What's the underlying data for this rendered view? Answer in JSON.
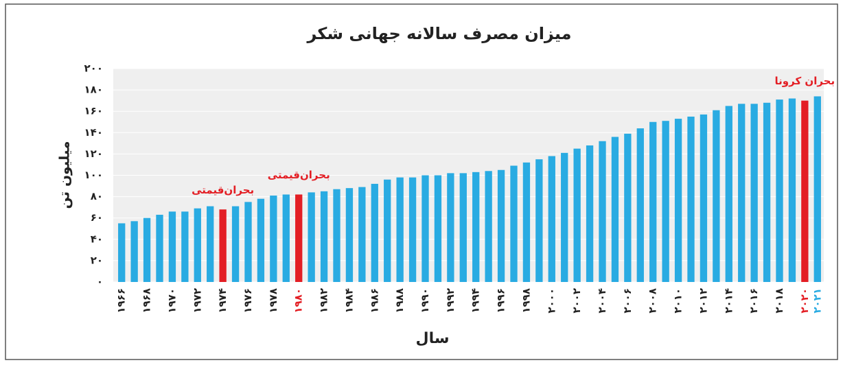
{
  "chart_data": {
    "type": "bar",
    "title": "میزان مصرف سالانه جهانی شکر",
    "ylabel": "میلیون تن",
    "xlabel": "سال",
    "categories": [
      "۱۹۶۶",
      null,
      "۱۹۶۸",
      null,
      "۱۹۷۰",
      null,
      "۱۹۷۲",
      null,
      "۱۹۷۴",
      null,
      "۱۹۷۶",
      null,
      "۱۹۷۸",
      null,
      "۱۹۸۰",
      null,
      "۱۹۸۲",
      null,
      "۱۹۸۴",
      null,
      "۱۹۸۶",
      null,
      "۱۹۸۸",
      null,
      "۱۹۹۰",
      null,
      "۱۹۹۲",
      null,
      "۱۹۹۴",
      null,
      "۱۹۹۶",
      null,
      "۱۹۹۸",
      null,
      "۲۰۰۰",
      null,
      "۲۰۰۲",
      null,
      "۲۰۰۴",
      null,
      "۲۰۰۶",
      null,
      "۲۰۰۸",
      null,
      "۲۰۱۰",
      null,
      "۲۰۱۲",
      null,
      "۲۰۱۴",
      null,
      "۲۰۱۶",
      null,
      "۲۰۱۸",
      null,
      "۲۰۲۰",
      "۲۰۲۱"
    ],
    "values": [
      55,
      57,
      60,
      63,
      66,
      66,
      69,
      71,
      68,
      71,
      75,
      78,
      81,
      82,
      82,
      84,
      85,
      87,
      88,
      89,
      92,
      96,
      98,
      98,
      100,
      100,
      102,
      102,
      103,
      104,
      105,
      109,
      112,
      115,
      118,
      121,
      125,
      128,
      132,
      136,
      139,
      144,
      150,
      151,
      153,
      155,
      157,
      161,
      165,
      167,
      167,
      168,
      171,
      172,
      170,
      174
    ],
    "colors": [
      "#29abe2",
      "#29abe2",
      "#29abe2",
      "#29abe2",
      "#29abe2",
      "#29abe2",
      "#29abe2",
      "#29abe2",
      "#e31e24",
      "#29abe2",
      "#29abe2",
      "#29abe2",
      "#29abe2",
      "#29abe2",
      "#e31e24",
      "#29abe2",
      "#29abe2",
      "#29abe2",
      "#29abe2",
      "#29abe2",
      "#29abe2",
      "#29abe2",
      "#29abe2",
      "#29abe2",
      "#29abe2",
      "#29abe2",
      "#29abe2",
      "#29abe2",
      "#29abe2",
      "#29abe2",
      "#29abe2",
      "#29abe2",
      "#29abe2",
      "#29abe2",
      "#29abe2",
      "#29abe2",
      "#29abe2",
      "#29abe2",
      "#29abe2",
      "#29abe2",
      "#29abe2",
      "#29abe2",
      "#29abe2",
      "#29abe2",
      "#29abe2",
      "#29abe2",
      "#29abe2",
      "#29abe2",
      "#29abe2",
      "#29abe2",
      "#29abe2",
      "#29abe2",
      "#29abe2",
      "#29abe2",
      "#e31e24",
      "#29abe2"
    ],
    "label_colors": [
      "#222",
      "#222",
      "#222",
      "#222",
      "#222",
      "#222",
      "#222",
      "#222",
      "#222",
      "#222",
      "#222",
      "#222",
      "#222",
      "#222",
      "#e31e24",
      "#222",
      "#222",
      "#222",
      "#222",
      "#222",
      "#222",
      "#222",
      "#222",
      "#222",
      "#222",
      "#222",
      "#222",
      "#222",
      "#222",
      "#222",
      "#222",
      "#222",
      "#222",
      "#222",
      "#222",
      "#222",
      "#222",
      "#222",
      "#222",
      "#222",
      "#222",
      "#222",
      "#222",
      "#222",
      "#222",
      "#222",
      "#222",
      "#222",
      "#222",
      "#222",
      "#222",
      "#222",
      "#222",
      "#222",
      "#e31e24",
      "#29abe2"
    ],
    "annotations": [
      {
        "text": "بحران‌قیمتی",
        "at": "۱۹۷۴"
      },
      {
        "text": "بحران‌قیمتی",
        "at": "۱۹۸۰"
      },
      {
        "text": "بحران کرونا",
        "at": "۲۰۲۰"
      }
    ],
    "ylim": [
      0,
      200
    ],
    "yticks": [
      {
        "value": 0,
        "label": "۰"
      },
      {
        "value": 20,
        "label": "۲۰"
      },
      {
        "value": 40,
        "label": "۴۰"
      },
      {
        "value": 60,
        "label": "۶۰"
      },
      {
        "value": 80,
        "label": "۸۰"
      },
      {
        "value": 100,
        "label": "۱۰۰"
      },
      {
        "value": 120,
        "label": "۱۲۰"
      },
      {
        "value": 140,
        "label": "۱۴۰"
      },
      {
        "value": 160,
        "label": "۱۶۰"
      },
      {
        "value": 180,
        "label": "۱۸۰"
      },
      {
        "value": 200,
        "label": "۲۰۰"
      }
    ],
    "grid": true
  }
}
